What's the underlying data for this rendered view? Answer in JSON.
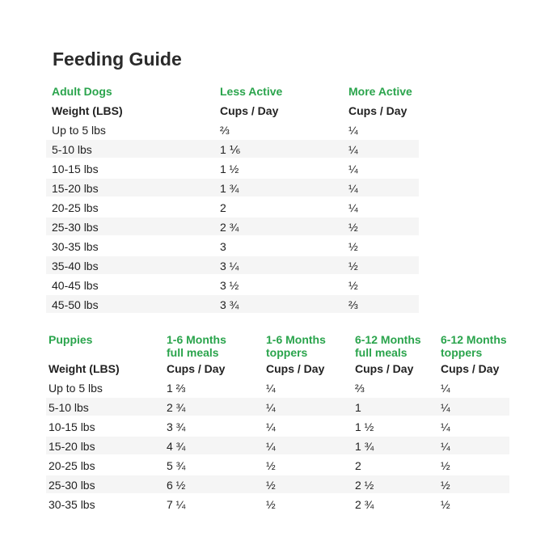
{
  "title": "Feeding Guide",
  "adult_table": {
    "headers": [
      [
        "Adult Dogs"
      ],
      [
        "Less Active"
      ],
      [
        "More Active"
      ]
    ],
    "subheaders": [
      "Weight (LBS)",
      "Cups / Day",
      "Cups / Day"
    ],
    "rows": [
      [
        "Up to 5 lbs",
        "⅔",
        "¼"
      ],
      [
        "5-10 lbs",
        "1 ⅙",
        "¼"
      ],
      [
        "10-15 lbs",
        "1 ½",
        "¼"
      ],
      [
        "15-20 lbs",
        "1 ¾",
        "¼"
      ],
      [
        "20-25 lbs",
        "2",
        "¼"
      ],
      [
        "25-30 lbs",
        "2 ¾",
        "½"
      ],
      [
        "30-35 lbs",
        "3",
        "½"
      ],
      [
        "35-40 lbs",
        "3 ¼",
        "½"
      ],
      [
        "40-45 lbs",
        "3 ½",
        "½"
      ],
      [
        "45-50 lbs",
        "3 ¾",
        "⅔"
      ]
    ]
  },
  "puppy_table": {
    "headers": [
      [
        "Puppies"
      ],
      [
        "1-6 Months",
        "full meals"
      ],
      [
        "1-6 Months",
        "toppers"
      ],
      [
        "6-12 Months",
        "full meals"
      ],
      [
        "6-12 Months",
        "toppers"
      ]
    ],
    "subheaders": [
      "Weight (LBS)",
      "Cups / Day",
      "Cups / Day",
      "Cups / Day",
      "Cups / Day"
    ],
    "rows": [
      [
        "Up to 5 lbs",
        "1 ⅔",
        "¼",
        "⅔",
        "¼"
      ],
      [
        "5-10 lbs",
        "2 ¾",
        "¼",
        "1",
        "¼"
      ],
      [
        "10-15 lbs",
        "3 ¾",
        "¼",
        "1 ½",
        "¼"
      ],
      [
        "15-20 lbs",
        "4 ¾",
        "¼",
        "1 ¾",
        "¼"
      ],
      [
        "20-25 lbs",
        "5 ¾",
        "½",
        "2",
        "½"
      ],
      [
        "25-30 lbs",
        "6 ½",
        "½",
        "2 ½",
        "½"
      ],
      [
        "30-35 lbs",
        "7 ¼",
        "½",
        "2 ¾",
        "½"
      ]
    ]
  }
}
